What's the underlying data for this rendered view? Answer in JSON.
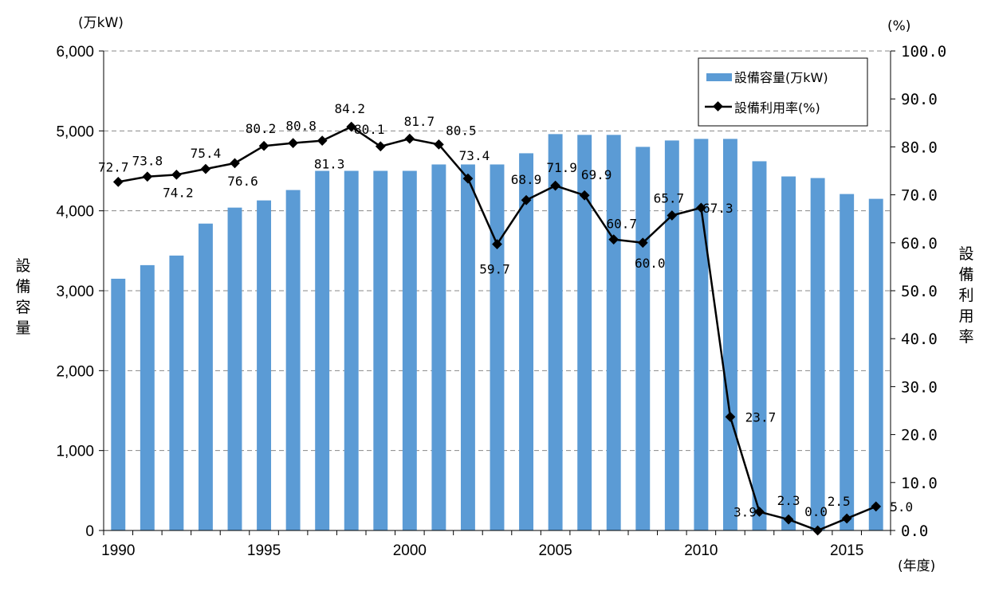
{
  "chart_data": {
    "type": "bar+line",
    "x": [
      1990,
      1991,
      1992,
      1993,
      1994,
      1995,
      1996,
      1997,
      1998,
      1999,
      2000,
      2001,
      2002,
      2003,
      2004,
      2005,
      2006,
      2007,
      2008,
      2009,
      2010,
      2011,
      2012,
      2013,
      2014,
      2015,
      2016
    ],
    "x_tick_labels": [
      "1990",
      "1995",
      "2000",
      "2005",
      "2010",
      "2015"
    ],
    "x_tick_values": [
      1990,
      1995,
      2000,
      2005,
      2010,
      2015
    ],
    "xlabel": "(年度)",
    "y_left": {
      "label": "設備容量",
      "unit": "(万kW)",
      "ylim": [
        0,
        6000
      ],
      "ticks": [
        "0",
        "1,000",
        "2,000",
        "3,000",
        "4,000",
        "5,000",
        "6,000"
      ]
    },
    "y_right": {
      "label": "設備利用率",
      "unit": "(%)",
      "ylim": [
        0,
        100
      ],
      "ticks": [
        "0.0",
        "10.0",
        "20.0",
        "30.0",
        "40.0",
        "50.0",
        "60.0",
        "70.0",
        "80.0",
        "90.0",
        "100.0"
      ]
    },
    "grid": "horizontal dashed",
    "legend_position": "top-right",
    "series": [
      {
        "name": "設備容量(万kW)",
        "type": "bar",
        "axis": "left",
        "color": "#5B9BD5",
        "values": [
          3150,
          3320,
          3440,
          3840,
          4040,
          4130,
          4260,
          4500,
          4500,
          4500,
          4500,
          4580,
          4580,
          4580,
          4720,
          4960,
          4950,
          4950,
          4800,
          4880,
          4900,
          4900,
          4620,
          4430,
          4410,
          4210,
          4150
        ]
      },
      {
        "name": "設備利用率(%)",
        "type": "line",
        "axis": "right",
        "color": "#000000",
        "values": [
          72.7,
          73.8,
          74.2,
          75.4,
          76.6,
          80.2,
          80.8,
          81.3,
          84.2,
          80.1,
          81.7,
          80.5,
          73.4,
          59.7,
          68.9,
          71.9,
          69.9,
          60.7,
          60.0,
          65.7,
          67.3,
          23.7,
          3.9,
          2.3,
          0.0,
          2.5,
          5.0
        ],
        "labels": [
          "72.7",
          "73.8",
          "74.2",
          "75.4",
          "76.6",
          "80.2",
          "80.8",
          "81.3",
          "84.2",
          "80.1",
          "81.7",
          "80.5",
          "73.4",
          "59.7",
          "68.9",
          "71.9",
          "69.9",
          "60.7",
          "60.0",
          "65.7",
          "67.3",
          "23.7",
          "3.9",
          "2.3",
          "0.0",
          "2.5",
          "5.0"
        ]
      }
    ]
  }
}
